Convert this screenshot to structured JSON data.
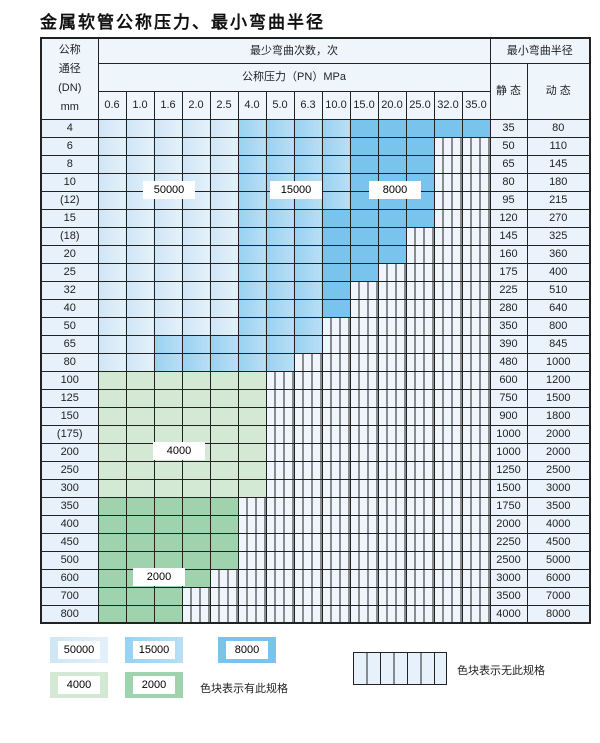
{
  "title": "金属软管公称压力、最小弯曲半径",
  "header": {
    "dn_label": [
      "公称",
      "通径",
      "(DN)",
      "mm"
    ],
    "cycles_label": "最少弯曲次数，次",
    "pressure_label": "公称压力（PN）MPa",
    "radius_label": "最小弯曲半径",
    "static_label": "静 态",
    "dynamic_label": "动 态",
    "pressures": [
      "0.6",
      "1.0",
      "1.6",
      "2.0",
      "2.5",
      "4.0",
      "5.0",
      "6.3",
      "10.0",
      "15.0",
      "20.0",
      "25.0",
      "32.0",
      "35.0"
    ]
  },
  "levels": {
    "a": "50000",
    "b": "15000",
    "c": "8000",
    "d": "4000",
    "e": "2000",
    "x": "无此规格"
  },
  "colors": {
    "a": "#d6ebf8",
    "b": "#a8d8f3",
    "c": "#79c4ec",
    "d": "#d4e9d4",
    "e": "#9fd3ad"
  },
  "rows": [
    {
      "dn": "4",
      "s": "35",
      "d": "80",
      "cells": "aaaaabbbbccccc"
    },
    {
      "dn": "6",
      "s": "50",
      "d": "110",
      "cells": "aaaaabbbbcccxx"
    },
    {
      "dn": "8",
      "s": "65",
      "d": "145",
      "cells": "aaaaabbbbcccxx"
    },
    {
      "dn": "10",
      "s": "80",
      "d": "180",
      "cells": "aaaaabbbbcccxx"
    },
    {
      "dn": "(12)",
      "s": "95",
      "d": "215",
      "cells": "aaaaabbbbcccxx"
    },
    {
      "dn": "15",
      "s": "120",
      "d": "270",
      "cells": "aaaaabbbccccxx"
    },
    {
      "dn": "(18)",
      "s": "145",
      "d": "325",
      "cells": "aaaaabbbcccxxx"
    },
    {
      "dn": "20",
      "s": "160",
      "d": "360",
      "cells": "aaaaabbbcccxxx"
    },
    {
      "dn": "25",
      "s": "175",
      "d": "400",
      "cells": "aaaaabbbccxxxx"
    },
    {
      "dn": "32",
      "s": "225",
      "d": "510",
      "cells": "aaaaabbbcxxxxx"
    },
    {
      "dn": "40",
      "s": "280",
      "d": "640",
      "cells": "aaaaabbbcxxxxx"
    },
    {
      "dn": "50",
      "s": "350",
      "d": "800",
      "cells": "aaaaabbbxxxxxx"
    },
    {
      "dn": "65",
      "s": "390",
      "d": "845",
      "cells": "aabbbbbbxxxxxx"
    },
    {
      "dn": "80",
      "s": "480",
      "d": "1000",
      "cells": "aabbbbbxxxxxxx"
    },
    {
      "dn": "100",
      "s": "600",
      "d": "1200",
      "cells": "ddddddxxxxxxxx"
    },
    {
      "dn": "125",
      "s": "750",
      "d": "1500",
      "cells": "ddddddxxxxxxxx"
    },
    {
      "dn": "150",
      "s": "900",
      "d": "1800",
      "cells": "ddddddxxxxxxxx"
    },
    {
      "dn": "(175)",
      "s": "1000",
      "d": "2000",
      "cells": "ddddddxxxxxxxx"
    },
    {
      "dn": "200",
      "s": "1000",
      "d": "2000",
      "cells": "ddddddxxxxxxxx"
    },
    {
      "dn": "250",
      "s": "1250",
      "d": "2500",
      "cells": "ddddddxxxxxxxx"
    },
    {
      "dn": "300",
      "s": "1500",
      "d": "3000",
      "cells": "ddddddxxxxxxxx"
    },
    {
      "dn": "350",
      "s": "1750",
      "d": "3500",
      "cells": "eeeeexxxxxxxxx"
    },
    {
      "dn": "400",
      "s": "2000",
      "d": "4000",
      "cells": "eeeeexxxxxxxxx"
    },
    {
      "dn": "450",
      "s": "2250",
      "d": "4500",
      "cells": "eeeeexxxxxxxxx"
    },
    {
      "dn": "500",
      "s": "2500",
      "d": "5000",
      "cells": "eeeeexxxxxxxxx"
    },
    {
      "dn": "600",
      "s": "3000",
      "d": "6000",
      "cells": "eeeexxxxxxxxxx"
    },
    {
      "dn": "700",
      "s": "3500",
      "d": "7000",
      "cells": "eeexxxxxxxxxxx"
    },
    {
      "dn": "800",
      "s": "4000",
      "d": "8000",
      "cells": "eeexxxxxxxxxxx"
    }
  ],
  "overlay": {
    "a": "50000",
    "b": "15000",
    "c": "8000",
    "d": "4000",
    "e": "2000"
  },
  "legend": {
    "items": [
      "50000",
      "15000",
      "8000",
      "4000",
      "2000"
    ],
    "has_spec_note": "色块表示有此规格",
    "no_spec_note": "色块表示无此规格"
  }
}
